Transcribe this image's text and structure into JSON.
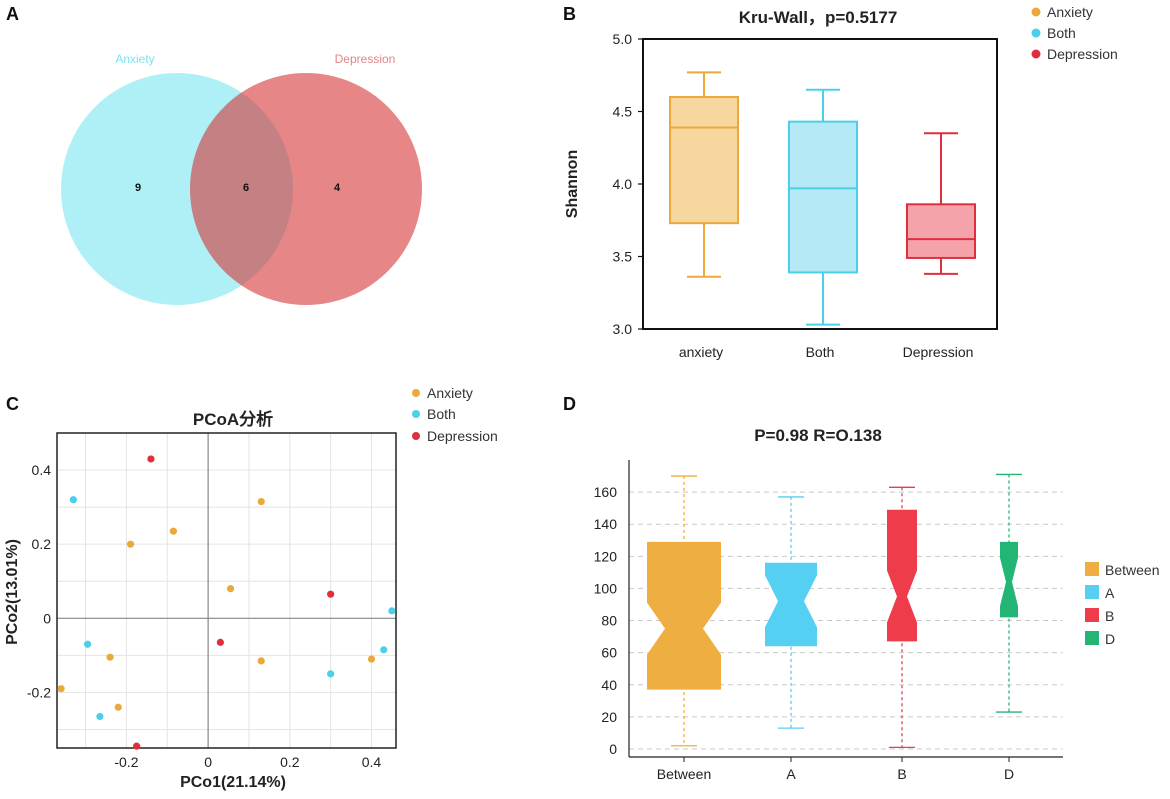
{
  "panels": {
    "a": "A",
    "b": "B",
    "c": "C",
    "d": "D"
  },
  "colors": {
    "anxiety": "#eaa93a",
    "both": "#4ccfe8",
    "depression": "#e02f3c",
    "between": "#eeae42",
    "a": "#56d0f2",
    "b": "#ee3c4b",
    "d": "#23b574"
  },
  "chart_data": [
    {
      "type": "venn",
      "sets": [
        "Anxiety",
        "Depression"
      ],
      "counts": {
        "only_anxiety": "9",
        "both": "6",
        "only_depression": "4"
      }
    },
    {
      "type": "box",
      "title": "Kru-Wall，p=0.5177",
      "ylabel": "Shannon",
      "ylim": [
        3.0,
        5.0
      ],
      "yticks": [
        "3.0",
        "3.5",
        "4.0",
        "4.5",
        "5.0"
      ],
      "categories": [
        "anxiety",
        "Both",
        "Depression"
      ],
      "legend": [
        "Anxiety",
        "Both",
        "Depression"
      ],
      "boxes": [
        {
          "min": 3.36,
          "q1": 3.73,
          "median": 4.39,
          "q3": 4.6,
          "max": 4.77
        },
        {
          "min": 3.03,
          "q1": 3.39,
          "median": 3.97,
          "q3": 4.43,
          "max": 4.65
        },
        {
          "min": 3.38,
          "q1": 3.49,
          "median": 3.62,
          "q3": 3.86,
          "max": 4.35
        }
      ]
    },
    {
      "type": "scatter",
      "title": "PCoA分析",
      "xlabel": "PCo1(21.14%)",
      "ylabel": "PCo2(13.01%)",
      "xlim": [
        -0.37,
        0.46
      ],
      "ylim": [
        -0.35,
        0.5
      ],
      "xticks": [
        "-0.2",
        "0",
        "0.2",
        "0.4"
      ],
      "yticks": [
        "-0.2",
        "0",
        "0.2",
        "0.4"
      ],
      "legend": [
        "Anxiety",
        "Both",
        "Depression"
      ],
      "series": [
        {
          "name": "Anxiety",
          "points": [
            [
              0.13,
              0.315
            ],
            [
              -0.085,
              0.235
            ],
            [
              -0.19,
              0.2
            ],
            [
              0.055,
              0.08
            ],
            [
              -0.24,
              -0.105
            ],
            [
              0.13,
              -0.115
            ],
            [
              -0.36,
              -0.19
            ],
            [
              -0.22,
              -0.24
            ],
            [
              0.4,
              -0.11
            ]
          ]
        },
        {
          "name": "Both",
          "points": [
            [
              -0.33,
              0.32
            ],
            [
              -0.295,
              -0.07
            ],
            [
              -0.265,
              -0.265
            ],
            [
              0.3,
              -0.15
            ],
            [
              0.43,
              -0.085
            ],
            [
              0.45,
              0.02
            ]
          ]
        },
        {
          "name": "Depression",
          "points": [
            [
              -0.14,
              0.43
            ],
            [
              0.03,
              -0.065
            ],
            [
              0.3,
              0.065
            ],
            [
              -0.175,
              -0.345
            ]
          ]
        }
      ]
    },
    {
      "type": "box",
      "title": "P=0.98 R=O.138",
      "ylim": [
        -5,
        180
      ],
      "yticks": [
        "0",
        "20",
        "40",
        "60",
        "80",
        "100",
        "120",
        "140",
        "160"
      ],
      "categories": [
        "Between",
        "A",
        "B",
        "D"
      ],
      "legend": [
        "Between",
        "A",
        "B",
        "D"
      ],
      "boxes": [
        {
          "min": 2,
          "q1": 37,
          "median": 75,
          "q3": 129,
          "max": 170
        },
        {
          "min": 13,
          "q1": 64,
          "median": 92,
          "q3": 116,
          "max": 157
        },
        {
          "min": 1,
          "q1": 67,
          "median": 95,
          "q3": 149,
          "max": 163
        },
        {
          "min": 23,
          "q1": 82,
          "median": 104,
          "q3": 129,
          "max": 171
        }
      ]
    }
  ]
}
